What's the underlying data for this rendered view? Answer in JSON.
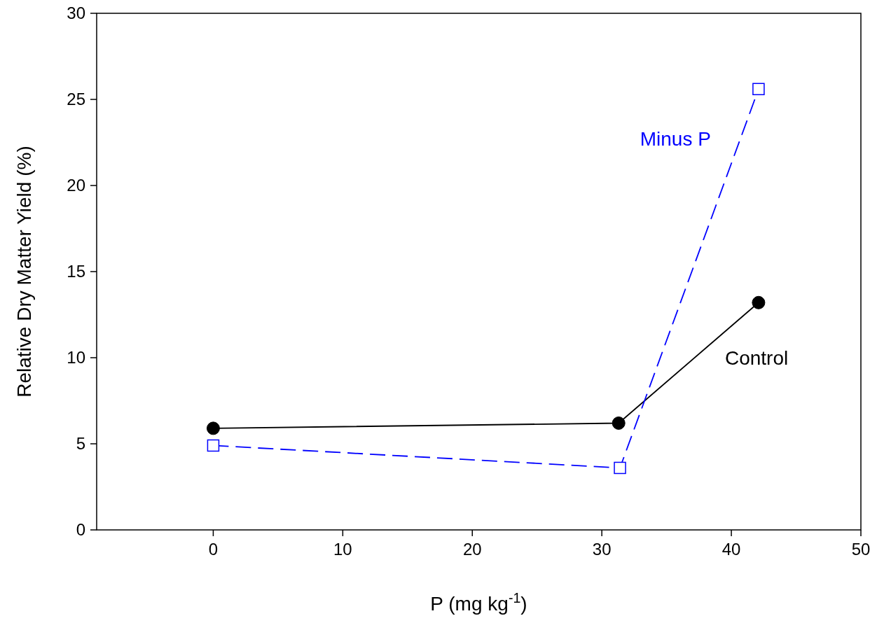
{
  "chart_data": {
    "type": "line",
    "xlabel": "P (mg kg$^{-1}$)",
    "ylabel": "Relative Dry Matter Yield (%)",
    "xlim": [
      -9,
      50
    ],
    "xticks": [
      0,
      10,
      20,
      30,
      40,
      50
    ],
    "ylim": [
      0,
      30
    ],
    "yticks": [
      0,
      5,
      10,
      15,
      20,
      25,
      30
    ],
    "grid": false,
    "legend": false,
    "series": [
      {
        "name": "Control",
        "color": "#000000",
        "marker": "circle",
        "line_style": "solid",
        "x": [
          0,
          31.3,
          42.1
        ],
        "values": [
          5.9,
          6.2,
          13.2
        ]
      },
      {
        "name": "Minus P",
        "color": "#0000ff",
        "marker": "square",
        "line_style": "dashed",
        "x": [
          0,
          31.4,
          42.1
        ],
        "values": [
          4.9,
          3.6,
          25.6
        ]
      }
    ]
  }
}
